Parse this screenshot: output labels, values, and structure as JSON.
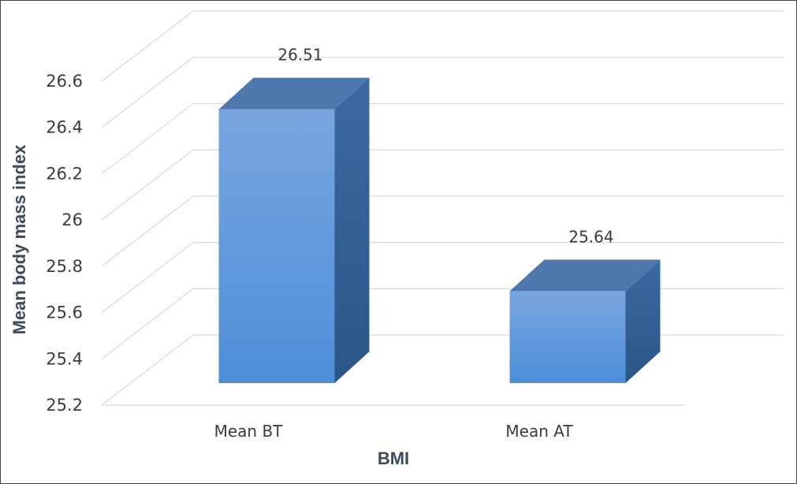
{
  "chart_data": {
    "type": "bar",
    "style": "3d-column",
    "categories": [
      "Mean BT",
      "Mean AT"
    ],
    "values": [
      26.51,
      25.64
    ],
    "data_labels": [
      "26.51",
      "25.64"
    ],
    "xlabel": "BMI",
    "ylabel": "Mean body mass index",
    "ylim": [
      25.2,
      26.6
    ],
    "yticks": [
      "25.2",
      "25.4",
      "25.6",
      "25.8",
      "26",
      "26.2",
      "26.4",
      "26.6"
    ],
    "grid": true,
    "legend": "none",
    "colors": {
      "bar_front_top": "#78a6e0",
      "bar_front_bottom": "#4d8ed9",
      "bar_side": "#2f5f96",
      "bar_top": "#4f79ad",
      "gridline": "#d9d9d9"
    }
  }
}
